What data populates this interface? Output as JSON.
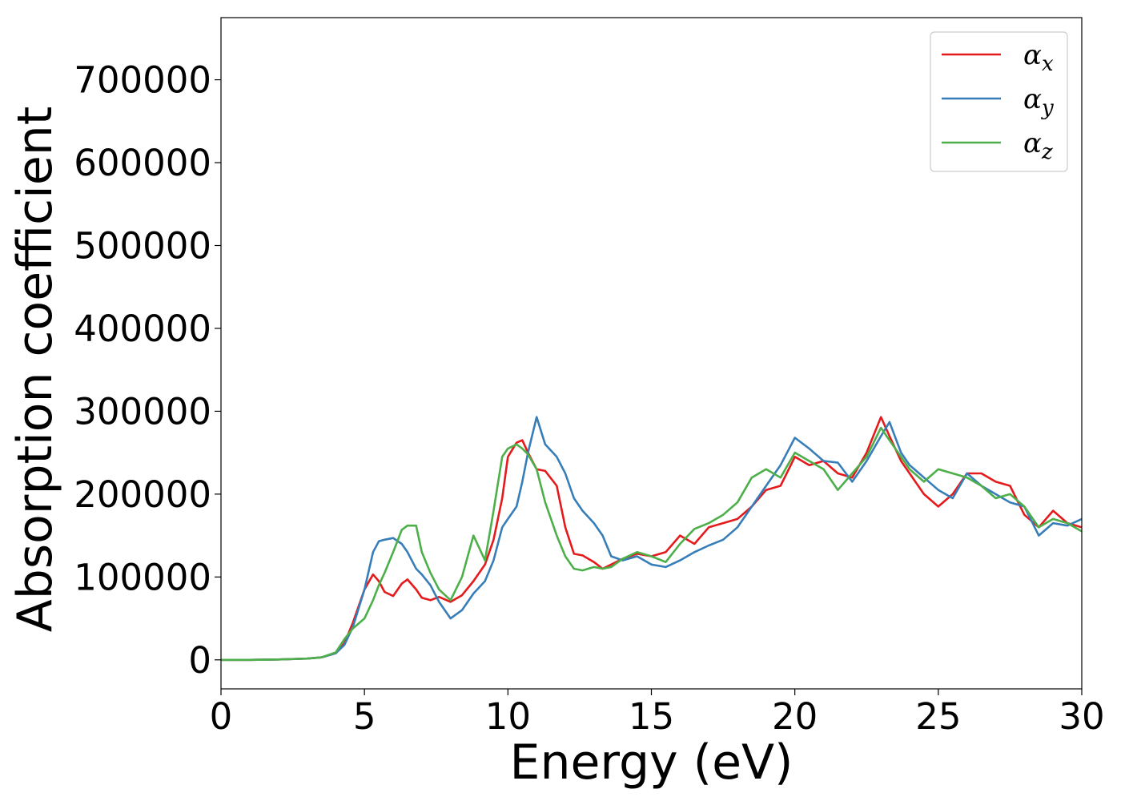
{
  "chart_data": {
    "type": "line",
    "xlabel": "Energy (eV)",
    "ylabel": "Absorption coefficient",
    "xlim": [
      0,
      30
    ],
    "ylim": [
      -35000,
      775000
    ],
    "xticks": [
      "0",
      "5",
      "10",
      "15",
      "20",
      "25",
      "30"
    ],
    "yticks": [
      "0",
      "100000",
      "200000",
      "300000",
      "400000",
      "500000",
      "600000",
      "700000"
    ],
    "grid": false,
    "legend_position": "top-right",
    "x": [
      0,
      1,
      2,
      3,
      3.5,
      4,
      4.3,
      4.6,
      5,
      5.3,
      5.5,
      5.7,
      6,
      6.3,
      6.5,
      6.8,
      7,
      7.3,
      7.6,
      8,
      8.4,
      8.8,
      9.2,
      9.5,
      9.8,
      10,
      10.3,
      10.5,
      10.7,
      11,
      11.3,
      11.7,
      12,
      12.3,
      12.6,
      13,
      13.3,
      13.6,
      14,
      14.5,
      15,
      15.5,
      16,
      16.5,
      17,
      17.5,
      18,
      18.5,
      19,
      19.5,
      20,
      20.5,
      21,
      21.5,
      22,
      22.5,
      23,
      23.3,
      23.7,
      24,
      24.5,
      25,
      25.5,
      26,
      26.5,
      27,
      27.5,
      28,
      28.5,
      29,
      29.5,
      30
    ],
    "series": [
      {
        "name": "α",
        "sub": "x",
        "color": "#e41a1c",
        "values": [
          0,
          0,
          500,
          1500,
          3000,
          8000,
          20000,
          45000,
          85000,
          103000,
          95000,
          82000,
          77000,
          92000,
          97000,
          85000,
          75000,
          72000,
          76000,
          70000,
          78000,
          95000,
          115000,
          145000,
          195000,
          245000,
          262000,
          265000,
          250000,
          230000,
          228000,
          210000,
          160000,
          128000,
          126000,
          118000,
          110000,
          115000,
          122000,
          128000,
          125000,
          130000,
          150000,
          140000,
          160000,
          165000,
          170000,
          185000,
          205000,
          210000,
          245000,
          235000,
          240000,
          225000,
          220000,
          250000,
          293000,
          270000,
          240000,
          225000,
          200000,
          185000,
          200000,
          225000,
          225000,
          215000,
          210000,
          175000,
          160000,
          180000,
          165000,
          160000
        ]
      },
      {
        "name": "α",
        "sub": "y",
        "color": "#377eb8",
        "values": [
          0,
          0,
          500,
          1500,
          3000,
          8000,
          18000,
          40000,
          85000,
          130000,
          143000,
          145000,
          147000,
          140000,
          130000,
          110000,
          103000,
          90000,
          70000,
          50000,
          60000,
          80000,
          95000,
          120000,
          160000,
          170000,
          185000,
          215000,
          250000,
          293000,
          260000,
          245000,
          225000,
          195000,
          180000,
          165000,
          150000,
          125000,
          120000,
          125000,
          115000,
          112000,
          120000,
          130000,
          138000,
          145000,
          160000,
          185000,
          210000,
          235000,
          268000,
          255000,
          240000,
          238000,
          215000,
          240000,
          270000,
          287000,
          250000,
          235000,
          220000,
          205000,
          195000,
          225000,
          210000,
          200000,
          190000,
          185000,
          150000,
          165000,
          162000,
          170000
        ]
      },
      {
        "name": "α",
        "sub": "z",
        "color": "#4daf4a",
        "values": [
          0,
          0,
          500,
          1500,
          3000,
          9000,
          25000,
          38000,
          50000,
          72000,
          90000,
          105000,
          130000,
          157000,
          162000,
          162000,
          130000,
          105000,
          85000,
          72000,
          100000,
          150000,
          120000,
          180000,
          245000,
          255000,
          260000,
          255000,
          248000,
          230000,
          190000,
          150000,
          125000,
          110000,
          108000,
          112000,
          110000,
          112000,
          122000,
          130000,
          125000,
          118000,
          140000,
          158000,
          165000,
          175000,
          190000,
          220000,
          230000,
          220000,
          250000,
          240000,
          230000,
          205000,
          225000,
          245000,
          280000,
          265000,
          245000,
          230000,
          215000,
          230000,
          225000,
          220000,
          210000,
          195000,
          200000,
          185000,
          160000,
          170000,
          165000,
          155000
        ]
      }
    ]
  }
}
